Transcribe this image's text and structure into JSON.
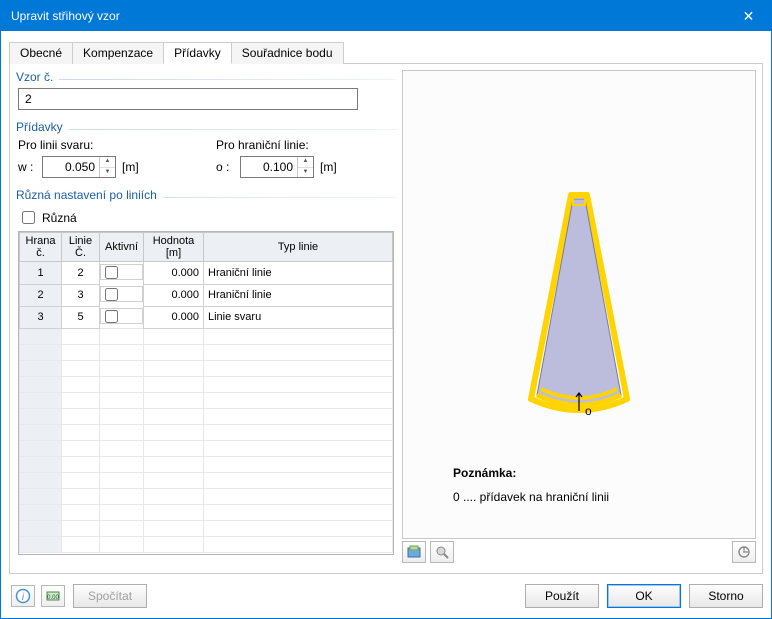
{
  "window": {
    "title": "Upravit střihový vzor"
  },
  "tabs": {
    "items": [
      "Obecné",
      "Kompenzace",
      "Přídavky",
      "Souřadnice bodu"
    ],
    "active_index": 2
  },
  "group_pattern": {
    "legend": "Vzor č.",
    "value": "2"
  },
  "group_add": {
    "legend": "Přídavky",
    "weld": {
      "label": "Pro linii svaru:",
      "prefix": "w :",
      "value": "0.050",
      "unit": "[m]"
    },
    "boundary": {
      "label": "Pro hraniční linie:",
      "prefix": "o :",
      "value": "0.100",
      "unit": "[m]"
    }
  },
  "group_lines": {
    "legend": "Různá nastavení po liniích",
    "checkbox_label": "Různá",
    "columns": {
      "edge": "Hrana\nč.",
      "line": "Linie\nČ.",
      "active": "Aktivní",
      "value": "Hodnota\n[m]",
      "type": "Typ linie"
    },
    "rows": [
      {
        "edge": "1",
        "line": "2",
        "active": false,
        "value": "0.000",
        "type": "Hraniční linie"
      },
      {
        "edge": "2",
        "line": "3",
        "active": false,
        "value": "0.000",
        "type": "Hraniční linie"
      },
      {
        "edge": "3",
        "line": "5",
        "active": false,
        "value": "0.000",
        "type": "Linie svaru"
      }
    ]
  },
  "preview": {
    "note_heading": "Poznámka:",
    "note_text": "0 .... přídavek na hraniční linii",
    "o_label": "o",
    "colors": {
      "outer_stroke": "#ffd400",
      "inner_fill": "#bcbddc",
      "inner_stroke": "#7a7a9c",
      "bg": "#fcfcfc"
    }
  },
  "buttons": {
    "calc": "Spočítat",
    "apply": "Použít",
    "ok": "OK",
    "cancel": "Storno"
  }
}
